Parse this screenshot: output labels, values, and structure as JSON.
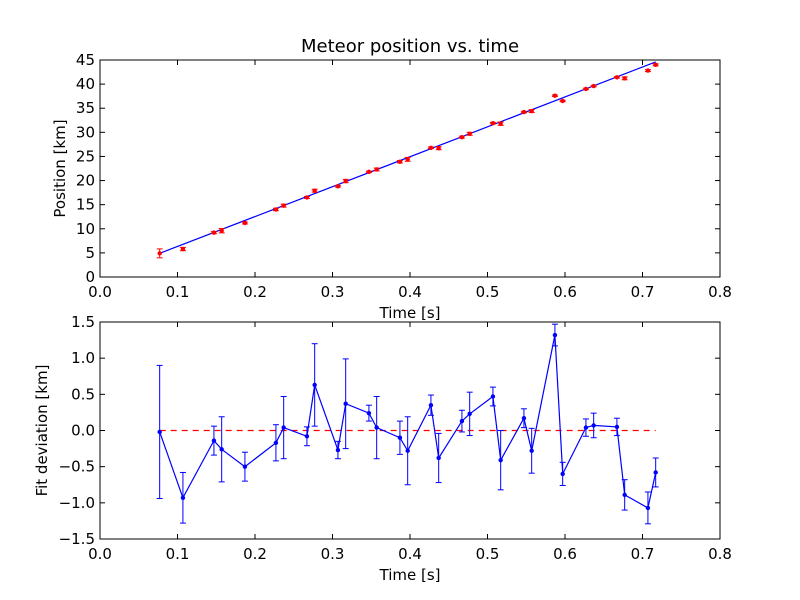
{
  "chart_data": [
    {
      "type": "scatter",
      "title": "Meteor position vs. time",
      "xlabel": "Time [s]",
      "ylabel": "Position [km]",
      "xlim": [
        0.0,
        0.8
      ],
      "ylim": [
        0,
        45
      ],
      "x_ticks": [
        "0.0",
        "0.1",
        "0.2",
        "0.3",
        "0.4",
        "0.5",
        "0.6",
        "0.7",
        "0.8"
      ],
      "y_ticks": [
        "0",
        "5",
        "10",
        "15",
        "20",
        "25",
        "30",
        "35",
        "40",
        "45"
      ],
      "grid": false,
      "colors": {
        "points": "#ff0000",
        "fit_line": "#0000ff"
      },
      "series": [
        {
          "style": "red markers with error bars",
          "x": [
            0.077,
            0.107,
            0.147,
            0.157,
            0.187,
            0.227,
            0.237,
            0.267,
            0.277,
            0.307,
            0.317,
            0.347,
            0.357,
            0.387,
            0.397,
            0.427,
            0.437,
            0.467,
            0.477,
            0.507,
            0.517,
            0.547,
            0.557,
            0.587,
            0.597,
            0.627,
            0.637,
            0.667,
            0.677,
            0.707,
            0.717
          ],
          "y": [
            4.9,
            5.8,
            9.2,
            9.6,
            11.2,
            14.0,
            14.8,
            16.5,
            17.9,
            18.8,
            19.9,
            21.8,
            22.3,
            23.9,
            24.4,
            26.8,
            26.7,
            29.0,
            29.7,
            31.9,
            31.8,
            34.2,
            34.4,
            37.6,
            36.5,
            39.0,
            39.6,
            41.4,
            41.2,
            42.8,
            44.0
          ],
          "yerr": [
            0.92,
            0.35,
            0.2,
            0.45,
            0.2,
            0.25,
            0.3,
            0.2,
            0.3,
            0.15,
            0.35,
            0.15,
            0.3,
            0.25,
            0.4,
            0.15,
            0.3,
            0.2,
            0.3,
            0.15,
            0.35,
            0.15,
            0.3,
            0.15,
            0.15,
            0.15,
            0.15,
            0.15,
            0.3,
            0.2,
            0.2
          ]
        },
        {
          "style": "blue fit line",
          "x": [
            0.077,
            0.717
          ],
          "y": [
            4.9,
            44.6
          ]
        }
      ]
    },
    {
      "type": "line",
      "xlabel": "Time [s]",
      "ylabel": "Fit deviation [km]",
      "xlim": [
        0.0,
        0.8
      ],
      "ylim": [
        -1.5,
        1.5
      ],
      "x_ticks": [
        "0.0",
        "0.1",
        "0.2",
        "0.3",
        "0.4",
        "0.5",
        "0.6",
        "0.7",
        "0.8"
      ],
      "y_ticks": [
        "−1.5",
        "−1.0",
        "−0.5",
        "0.0",
        "0.5",
        "1.0",
        "1.5"
      ],
      "grid": false,
      "colors": {
        "series": "#0000ff",
        "zero_line": "#ff0000"
      },
      "reference_line": {
        "y": 0.0,
        "x": [
          0.077,
          0.717
        ],
        "style": "red dashed"
      },
      "series": [
        {
          "style": "blue line with point markers and error bars",
          "x": [
            0.077,
            0.107,
            0.147,
            0.157,
            0.187,
            0.227,
            0.237,
            0.267,
            0.277,
            0.307,
            0.317,
            0.347,
            0.357,
            0.387,
            0.397,
            0.427,
            0.437,
            0.467,
            0.477,
            0.507,
            0.517,
            0.547,
            0.557,
            0.587,
            0.597,
            0.627,
            0.637,
            0.667,
            0.677,
            0.707,
            0.717
          ],
          "y": [
            -0.02,
            -0.93,
            -0.14,
            -0.26,
            -0.5,
            -0.17,
            0.04,
            -0.08,
            0.63,
            -0.27,
            0.37,
            0.24,
            0.04,
            -0.1,
            -0.28,
            0.35,
            -0.38,
            0.13,
            0.23,
            0.47,
            -0.41,
            0.17,
            -0.28,
            1.32,
            -0.6,
            0.04,
            0.07,
            0.05,
            -0.89,
            -1.07,
            -0.58
          ],
          "yerr": [
            0.92,
            0.35,
            0.2,
            0.45,
            0.2,
            0.25,
            0.43,
            0.13,
            0.57,
            0.12,
            0.62,
            0.11,
            0.43,
            0.23,
            0.47,
            0.14,
            0.34,
            0.15,
            0.3,
            0.13,
            0.41,
            0.13,
            0.31,
            0.15,
            0.16,
            0.12,
            0.17,
            0.12,
            0.21,
            0.22,
            0.2
          ]
        }
      ]
    }
  ]
}
